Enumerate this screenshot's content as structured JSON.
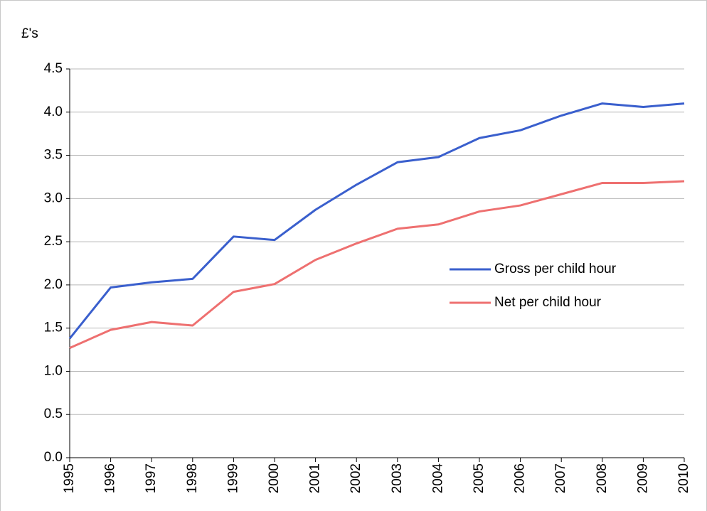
{
  "chart_data": {
    "type": "line",
    "y_label": "£'s",
    "categories": [
      "1995",
      "1996",
      "1997",
      "1998",
      "1999",
      "2000",
      "2001",
      "2002",
      "2003",
      "2004",
      "2005",
      "2006",
      "2007",
      "2008",
      "2009",
      "2010"
    ],
    "series": [
      {
        "name": "Gross per child hour",
        "color": "#3a5fcd",
        "values": [
          1.38,
          1.97,
          2.03,
          2.07,
          2.56,
          2.52,
          2.87,
          3.16,
          3.42,
          3.48,
          3.7,
          3.79,
          3.96,
          4.1,
          4.06,
          4.1
        ]
      },
      {
        "name": "Net per child hour",
        "color": "#ee7070",
        "values": [
          1.27,
          1.48,
          1.57,
          1.53,
          1.92,
          2.01,
          2.29,
          2.48,
          2.65,
          2.7,
          2.85,
          2.92,
          3.05,
          3.18,
          3.18,
          3.2
        ]
      }
    ],
    "ylim": [
      0,
      4.5
    ],
    "yticks": [
      {
        "value": 0,
        "label": "0.0"
      },
      0.5,
      {
        "value": 1,
        "label": "1.0"
      },
      1.5,
      {
        "value": 2,
        "label": "2.0"
      },
      2.5,
      {
        "value": 3,
        "label": "3.0"
      },
      3.5,
      {
        "value": 4,
        "label": "4.0"
      },
      4.5
    ],
    "grid": true,
    "legend": "right"
  }
}
